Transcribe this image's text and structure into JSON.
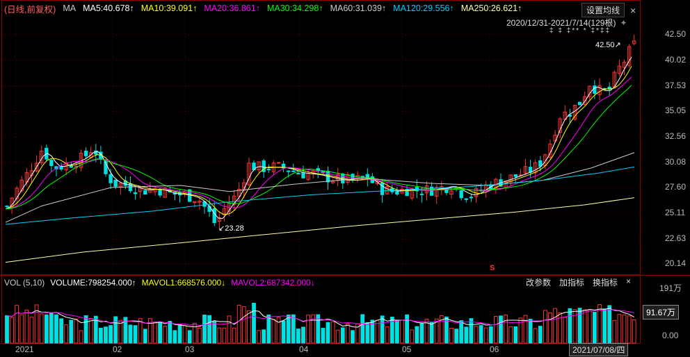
{
  "ma_header": {
    "period": "(日线,前复权)",
    "ma_label": "MA",
    "items": [
      {
        "label": "MA5:40.678↑",
        "color": "#ffffff"
      },
      {
        "label": "MA10:39.091↑",
        "color": "#ffff00"
      },
      {
        "label": "MA20:36.861↑",
        "color": "#ff00ff"
      },
      {
        "label": "MA30:34.298↑",
        "color": "#00ff00"
      },
      {
        "label": "MA60:31.039↑",
        "color": "#cccccc"
      },
      {
        "label": "MA120:29.556↑",
        "color": "#00ccff"
      },
      {
        "label": "MA250:26.621↑",
        "color": "#ffffaa"
      }
    ]
  },
  "toolbar": {
    "setting_label": "设置均线",
    "close": "×"
  },
  "range_label": "2020/12/31-2021/7/14(129根)",
  "markers": "‡ ‡ ‡** * ‡*‡‡",
  "price_axis": [
    "42.50",
    "40.02",
    "37.53",
    "35.05",
    "32.56",
    "30.08",
    "27.60",
    "25.11",
    "22.63",
    "20.14"
  ],
  "annotations": {
    "high": "42.50↗",
    "low": "↙23.28",
    "s_marker": "S"
  },
  "volume": {
    "header_label": "VOL (5,10)",
    "volume": "VOLUME:798254.000↑",
    "mavol1": "MAVOL1:668576.000↓",
    "mavol2": "MAVOL2:687342.000↓",
    "tools": [
      "改参数",
      "加指标",
      "换指标",
      "×"
    ],
    "axis": [
      "191万",
      "0.00"
    ],
    "current": "91.67万"
  },
  "time_axis": [
    "2021",
    "02",
    "03",
    "04",
    "05",
    "06"
  ],
  "current_date": "2021/07/08/四",
  "colors": {
    "up": "#ff3232",
    "down": "#00e0e0",
    "grid": "#5a0000"
  }
}
